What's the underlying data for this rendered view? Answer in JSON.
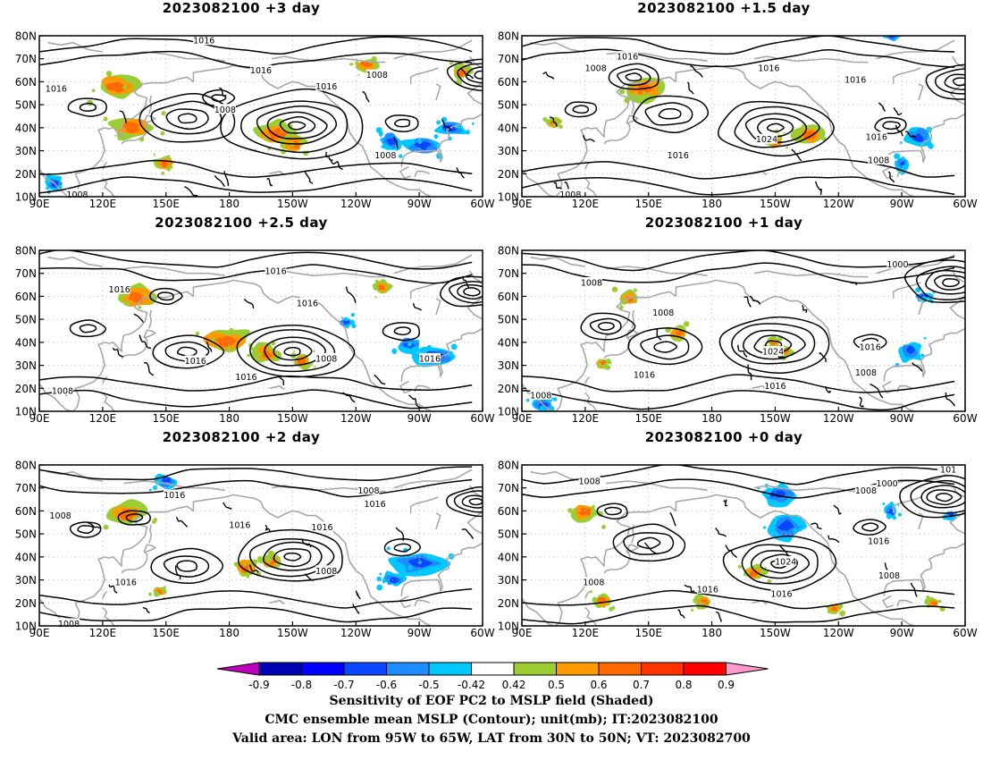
{
  "panels": [
    {
      "title": "2023082100 +3 day",
      "labels": [
        {
          "text": "1016",
          "lon": 168,
          "lat": 78
        },
        {
          "text": "1016",
          "lon": 195,
          "lat": 65
        },
        {
          "text": "1016",
          "lon": 226,
          "lat": 58
        },
        {
          "text": "1016",
          "lon": 98,
          "lat": 57
        },
        {
          "text": "1008",
          "lon": 178,
          "lat": 48
        },
        {
          "text": "1008",
          "lon": 250,
          "lat": 63
        },
        {
          "text": "1008",
          "lon": 254,
          "lat": 28
        },
        {
          "text": "1008",
          "lon": 108,
          "lat": 11
        }
      ]
    },
    {
      "title": "2023082100 +1.5 day",
      "labels": [
        {
          "text": "1016",
          "lon": 140,
          "lat": 71
        },
        {
          "text": "1008",
          "lon": 125,
          "lat": 66
        },
        {
          "text": "1016",
          "lon": 207,
          "lat": 66
        },
        {
          "text": "1016",
          "lon": 248,
          "lat": 61
        },
        {
          "text": "1024",
          "lon": 206,
          "lat": 35
        },
        {
          "text": "1016",
          "lon": 164,
          "lat": 28
        },
        {
          "text": "1016",
          "lon": 258,
          "lat": 36
        },
        {
          "text": "1008",
          "lon": 259,
          "lat": 26
        },
        {
          "text": "1008",
          "lon": 113,
          "lat": 11
        }
      ]
    },
    {
      "title": "2023082100 +2.5 day",
      "labels": [
        {
          "text": "1016",
          "lon": 202,
          "lat": 71
        },
        {
          "text": "1016",
          "lon": 128,
          "lat": 63
        },
        {
          "text": "1016",
          "lon": 217,
          "lat": 57
        },
        {
          "text": "1016",
          "lon": 164,
          "lat": 32
        },
        {
          "text": "1016",
          "lon": 188,
          "lat": 25
        },
        {
          "text": "1008",
          "lon": 226,
          "lat": 33
        },
        {
          "text": "1016",
          "lon": 275,
          "lat": 33
        },
        {
          "text": "1008",
          "lon": 101,
          "lat": 19
        }
      ]
    },
    {
      "title": "2023082100 +1 day",
      "labels": [
        {
          "text": "1000",
          "lon": 268,
          "lat": 74
        },
        {
          "text": "1008",
          "lon": 123,
          "lat": 66
        },
        {
          "text": "1008",
          "lon": 157,
          "lat": 53
        },
        {
          "text": "1024",
          "lon": 209,
          "lat": 36
        },
        {
          "text": "1016",
          "lon": 255,
          "lat": 38
        },
        {
          "text": "1008",
          "lon": 253,
          "lat": 27
        },
        {
          "text": "1016",
          "lon": 148,
          "lat": 26
        },
        {
          "text": "1016",
          "lon": 210,
          "lat": 21
        },
        {
          "text": "1008",
          "lon": 99,
          "lat": 17
        }
      ]
    },
    {
      "title": "2023082100 +2 day",
      "labels": [
        {
          "text": "1016",
          "lon": 154,
          "lat": 67
        },
        {
          "text": "1008",
          "lon": 100,
          "lat": 58
        },
        {
          "text": "1016",
          "lon": 185,
          "lat": 54
        },
        {
          "text": "1016",
          "lon": 224,
          "lat": 53
        },
        {
          "text": "1008",
          "lon": 246,
          "lat": 69
        },
        {
          "text": "1016",
          "lon": 249,
          "lat": 63
        },
        {
          "text": "1008",
          "lon": 226,
          "lat": 34
        },
        {
          "text": "1016",
          "lon": 131,
          "lat": 29
        },
        {
          "text": "1008",
          "lon": 104,
          "lat": 11
        }
      ]
    },
    {
      "title": "2023082100 +0 day",
      "labels": [
        {
          "text": "1008",
          "lon": 122,
          "lat": 73
        },
        {
          "text": "1008",
          "lon": 253,
          "lat": 69
        },
        {
          "text": "1000",
          "lon": 263,
          "lat": 72
        },
        {
          "text": "1016",
          "lon": 259,
          "lat": 47
        },
        {
          "text": "1024",
          "lon": 215,
          "lat": 38
        },
        {
          "text": "1016",
          "lon": 178,
          "lat": 26
        },
        {
          "text": "1016",
          "lon": 213,
          "lat": 24
        },
        {
          "text": "1008",
          "lon": 124,
          "lat": 29
        },
        {
          "text": "1008",
          "lon": 264,
          "lat": 32
        },
        {
          "text": "101",
          "lon": 292,
          "lat": 78
        }
      ]
    }
  ],
  "axes": {
    "lon_range": [
      90,
      300
    ],
    "lat_range": [
      10,
      80
    ],
    "lon_ticks": [
      {
        "value": 90,
        "label": "90E"
      },
      {
        "value": 120,
        "label": "120E"
      },
      {
        "value": 150,
        "label": "150E"
      },
      {
        "value": 180,
        "label": "180"
      },
      {
        "value": 210,
        "label": "150W"
      },
      {
        "value": 240,
        "label": "120W"
      },
      {
        "value": 270,
        "label": "90W"
      },
      {
        "value": 300,
        "label": "60W"
      }
    ],
    "lat_ticks": [
      {
        "value": 10,
        "label": "10N"
      },
      {
        "value": 20,
        "label": "20N"
      },
      {
        "value": 30,
        "label": "30N"
      },
      {
        "value": 40,
        "label": "40N"
      },
      {
        "value": 50,
        "label": "50N"
      },
      {
        "value": 60,
        "label": "60N"
      },
      {
        "value": 70,
        "label": "70N"
      },
      {
        "value": 80,
        "label": "80N"
      }
    ]
  },
  "colorbar": {
    "tick_labels": [
      "-0.9",
      "-0.8",
      "-0.7",
      "-0.6",
      "-0.5",
      "-0.42",
      "0.42",
      "0.5",
      "0.6",
      "0.7",
      "0.8",
      "0.9"
    ],
    "colors": [
      "#c000c0",
      "#0000b4",
      "#0000ff",
      "#0a46ff",
      "#1e8cff",
      "#00c8ff",
      "#ffffff",
      "#9acd32",
      "#ff9900",
      "#ff6a00",
      "#ff3300",
      "#ff0000",
      "#ff99cc"
    ]
  },
  "captions": [
    "Sensitivity of EOF PC2 to MSLP field (Shaded)",
    "CMC ensemble mean MSLP (Contour); unit(mb); IT:2023082100",
    "Valid area: LON from 95W to 65W, LAT from 30N to 50N; VT: 2023082700"
  ]
}
